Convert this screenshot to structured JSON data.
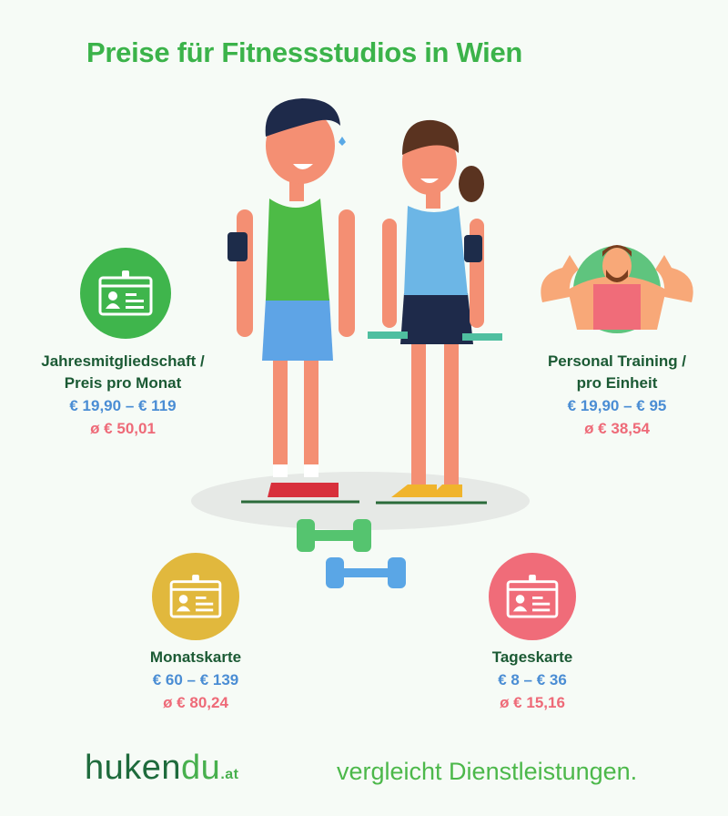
{
  "title": "Preise für Fitnessstudios in Wien",
  "colors": {
    "title": "#3bb34a",
    "label": "#1b5a34",
    "range": "#4a8dd4",
    "average": "#ee6a78",
    "green": "#3fb54c",
    "yellow": "#e1b83d",
    "pink": "#f06c79",
    "trainer": "#5fc47e"
  },
  "cards": [
    {
      "name_line1": "Jahresmitgliedschaft /",
      "name_line2": "Preis pro Monat",
      "range": "€ 19,90 – € 119",
      "average": "ø € 50,01",
      "icon": "id-card-icon"
    },
    {
      "name_line1": "Personal Training /",
      "name_line2": "pro Einheit",
      "range": "€ 19,90 – € 95",
      "average": "ø € 38,54",
      "icon": "trainer-icon"
    },
    {
      "name_line1": "Monatskarte",
      "range": "€ 60 – € 139",
      "average": "ø € 80,24",
      "icon": "id-card-icon"
    },
    {
      "name_line1": "Tageskarte",
      "range": "€ 8 – € 36",
      "average": "ø € 15,16",
      "icon": "id-card-icon"
    }
  ],
  "footer": {
    "logo_main": "huken",
    "logo_accent": "du",
    "logo_tld": ".at",
    "tagline": "vergleicht Dienstleistungen."
  }
}
